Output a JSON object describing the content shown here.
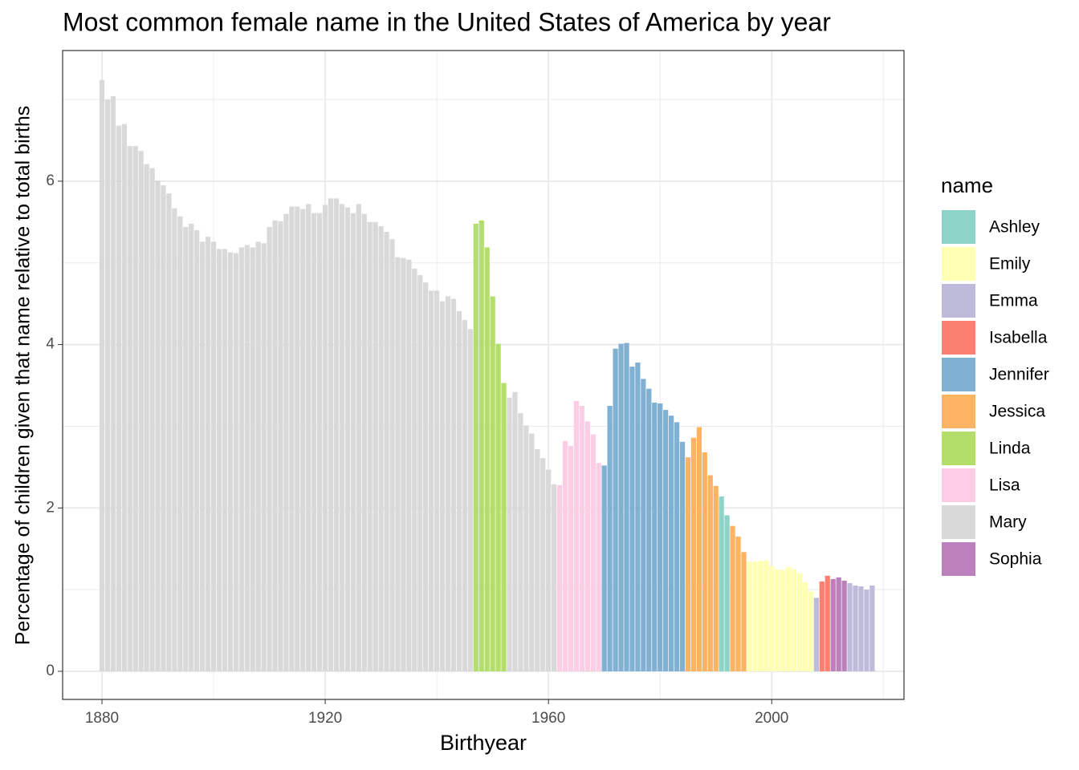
{
  "chart_data": {
    "type": "bar",
    "title": "Most common female name in the United States of America by year",
    "x_label": "Birthyear",
    "y_label": "Percentage of children given that name relative to total births",
    "xlim": [
      1872.95,
      2023.7
    ],
    "ylim": [
      -0.344,
      7.6
    ],
    "xticks": [
      1880,
      1920,
      1960,
      2000
    ],
    "yticks": [
      0,
      2,
      4,
      6
    ],
    "grid": true,
    "minor_grid": true,
    "x": [
      1880,
      1881,
      1882,
      1883,
      1884,
      1885,
      1886,
      1887,
      1888,
      1889,
      1890,
      1891,
      1892,
      1893,
      1894,
      1895,
      1896,
      1897,
      1898,
      1899,
      1900,
      1901,
      1902,
      1903,
      1904,
      1905,
      1906,
      1907,
      1908,
      1909,
      1910,
      1911,
      1912,
      1913,
      1914,
      1915,
      1916,
      1917,
      1918,
      1919,
      1920,
      1921,
      1922,
      1923,
      1924,
      1925,
      1926,
      1927,
      1928,
      1929,
      1930,
      1931,
      1932,
      1933,
      1934,
      1935,
      1936,
      1937,
      1938,
      1939,
      1940,
      1941,
      1942,
      1943,
      1944,
      1945,
      1946,
      1947,
      1948,
      1949,
      1950,
      1951,
      1952,
      1953,
      1954,
      1955,
      1956,
      1957,
      1958,
      1959,
      1960,
      1961,
      1962,
      1963,
      1964,
      1965,
      1966,
      1967,
      1968,
      1969,
      1970,
      1971,
      1972,
      1973,
      1974,
      1975,
      1976,
      1977,
      1978,
      1979,
      1980,
      1981,
      1982,
      1983,
      1984,
      1985,
      1986,
      1987,
      1988,
      1989,
      1990,
      1991,
      1992,
      1993,
      1994,
      1995,
      1996,
      1997,
      1998,
      1999,
      2000,
      2001,
      2002,
      2003,
      2004,
      2005,
      2006,
      2007,
      2008,
      2009,
      2010,
      2011,
      2012,
      2013,
      2014,
      2015,
      2016,
      2017,
      2018
    ],
    "values": [
      7.24,
      7.0,
      7.04,
      6.68,
      6.7,
      6.43,
      6.43,
      6.37,
      6.21,
      6.16,
      6.01,
      5.95,
      5.85,
      5.67,
      5.57,
      5.44,
      5.48,
      5.4,
      5.26,
      5.32,
      5.26,
      5.17,
      5.17,
      5.13,
      5.12,
      5.19,
      5.22,
      5.19,
      5.26,
      5.24,
      5.44,
      5.52,
      5.51,
      5.6,
      5.69,
      5.69,
      5.66,
      5.72,
      5.61,
      5.61,
      5.71,
      5.79,
      5.79,
      5.72,
      5.68,
      5.61,
      5.72,
      5.6,
      5.5,
      5.5,
      5.45,
      5.38,
      5.29,
      5.07,
      5.06,
      5.04,
      4.93,
      4.85,
      4.76,
      4.66,
      4.66,
      4.53,
      4.59,
      4.56,
      4.41,
      4.3,
      4.19,
      5.48,
      5.52,
      5.19,
      4.59,
      4.01,
      3.53,
      3.35,
      3.42,
      3.16,
      3.01,
      2.91,
      2.72,
      2.61,
      2.47,
      2.29,
      2.28,
      2.82,
      2.76,
      3.31,
      3.25,
      3.06,
      2.9,
      2.55,
      2.52,
      3.25,
      3.95,
      4.01,
      4.02,
      3.73,
      3.78,
      3.58,
      3.46,
      3.29,
      3.28,
      3.2,
      3.13,
      3.05,
      2.81,
      2.62,
      2.86,
      2.99,
      2.68,
      2.4,
      2.27,
      2.14,
      1.91,
      1.78,
      1.65,
      1.46,
      1.34,
      1.34,
      1.35,
      1.36,
      1.29,
      1.25,
      1.24,
      1.28,
      1.25,
      1.2,
      1.09,
      0.98,
      0.9,
      1.1,
      1.17,
      1.13,
      1.15,
      1.11,
      1.08,
      1.05,
      1.04,
      1.0,
      1.05
    ],
    "names": [
      "Mary",
      "Mary",
      "Mary",
      "Mary",
      "Mary",
      "Mary",
      "Mary",
      "Mary",
      "Mary",
      "Mary",
      "Mary",
      "Mary",
      "Mary",
      "Mary",
      "Mary",
      "Mary",
      "Mary",
      "Mary",
      "Mary",
      "Mary",
      "Mary",
      "Mary",
      "Mary",
      "Mary",
      "Mary",
      "Mary",
      "Mary",
      "Mary",
      "Mary",
      "Mary",
      "Mary",
      "Mary",
      "Mary",
      "Mary",
      "Mary",
      "Mary",
      "Mary",
      "Mary",
      "Mary",
      "Mary",
      "Mary",
      "Mary",
      "Mary",
      "Mary",
      "Mary",
      "Mary",
      "Mary",
      "Mary",
      "Mary",
      "Mary",
      "Mary",
      "Mary",
      "Mary",
      "Mary",
      "Mary",
      "Mary",
      "Mary",
      "Mary",
      "Mary",
      "Mary",
      "Mary",
      "Mary",
      "Mary",
      "Mary",
      "Mary",
      "Mary",
      "Mary",
      "Linda",
      "Linda",
      "Linda",
      "Linda",
      "Linda",
      "Linda",
      "Mary",
      "Mary",
      "Mary",
      "Mary",
      "Mary",
      "Mary",
      "Mary",
      "Mary",
      "Mary",
      "Lisa",
      "Lisa",
      "Lisa",
      "Lisa",
      "Lisa",
      "Lisa",
      "Lisa",
      "Lisa",
      "Jennifer",
      "Jennifer",
      "Jennifer",
      "Jennifer",
      "Jennifer",
      "Jennifer",
      "Jennifer",
      "Jennifer",
      "Jennifer",
      "Jennifer",
      "Jennifer",
      "Jennifer",
      "Jennifer",
      "Jennifer",
      "Jennifer",
      "Jessica",
      "Jessica",
      "Jessica",
      "Jessica",
      "Jessica",
      "Jessica",
      "Ashley",
      "Ashley",
      "Jessica",
      "Jessica",
      "Jessica",
      "Emily",
      "Emily",
      "Emily",
      "Emily",
      "Emily",
      "Emily",
      "Emily",
      "Emily",
      "Emily",
      "Emily",
      "Emily",
      "Emily",
      "Emma",
      "Isabella",
      "Isabella",
      "Sophia",
      "Sophia",
      "Sophia",
      "Emma",
      "Emma",
      "Emma",
      "Emma",
      "Emma"
    ],
    "legend_title": "name",
    "legend": [
      {
        "name": "Ashley",
        "color": "#8dd3c7"
      },
      {
        "name": "Emily",
        "color": "#ffffb3"
      },
      {
        "name": "Emma",
        "color": "#bebada"
      },
      {
        "name": "Isabella",
        "color": "#fb8072"
      },
      {
        "name": "Jennifer",
        "color": "#80b1d3"
      },
      {
        "name": "Jessica",
        "color": "#fdb462"
      },
      {
        "name": "Linda",
        "color": "#b3de69"
      },
      {
        "name": "Lisa",
        "color": "#fccde5"
      },
      {
        "name": "Mary",
        "color": "#d9d9d9"
      },
      {
        "name": "Sophia",
        "color": "#bc80bd"
      }
    ]
  }
}
